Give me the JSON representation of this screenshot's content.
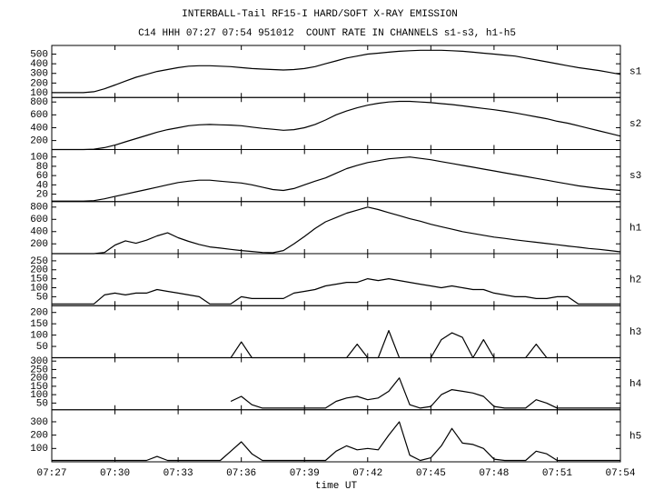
{
  "title": "INTERBALL-Tail RF15-I HARD/SOFT X-RAY EMISSION",
  "subtitle": "C14 HHH 07:27 07:54 951012  COUNT RATE IN CHANNELS s1-s3, h1-h5",
  "axis": {
    "xlabel": "time UT",
    "xlim": [
      447,
      474
    ],
    "xticks": [
      {
        "value": 447,
        "label": "07:27"
      },
      {
        "value": 450,
        "label": "07:30"
      },
      {
        "value": 453,
        "label": "07:33"
      },
      {
        "value": 456,
        "label": "07:36"
      },
      {
        "value": 459,
        "label": "07:39"
      },
      {
        "value": 462,
        "label": "07:42"
      },
      {
        "value": 465,
        "label": "07:45"
      },
      {
        "value": 468,
        "label": "07:48"
      },
      {
        "value": 471,
        "label": "07:51"
      },
      {
        "value": 474,
        "label": "07:54"
      }
    ],
    "x": [
      447,
      447.5,
      448,
      448.5,
      449,
      449.5,
      450,
      450.5,
      451,
      451.5,
      452,
      452.5,
      453,
      453.5,
      454,
      454.5,
      455,
      455.5,
      456,
      456.5,
      457,
      457.5,
      458,
      458.5,
      459,
      459.5,
      460,
      460.5,
      461,
      461.5,
      462,
      462.5,
      463,
      463.5,
      464,
      464.5,
      465,
      465.5,
      466,
      466.5,
      467,
      467.5,
      468,
      468.5,
      469,
      469.5,
      470,
      470.5,
      471,
      471.5,
      472,
      472.5,
      473,
      473.5,
      474
    ]
  },
  "chart_data": [
    {
      "type": "line",
      "label": "s1",
      "color": "#000000",
      "ylim": [
        50,
        590
      ],
      "yticks": [
        100,
        200,
        300,
        400,
        500
      ],
      "values": [
        100,
        100,
        100,
        100,
        110,
        140,
        180,
        220,
        260,
        290,
        320,
        340,
        360,
        375,
        380,
        380,
        375,
        370,
        360,
        350,
        345,
        340,
        335,
        340,
        350,
        370,
        400,
        430,
        460,
        480,
        500,
        510,
        520,
        530,
        535,
        540,
        540,
        540,
        535,
        530,
        520,
        510,
        500,
        490,
        480,
        460,
        440,
        420,
        400,
        380,
        360,
        345,
        330,
        310,
        290
      ]
    },
    {
      "type": "line",
      "label": "s2",
      "color": "#000000",
      "ylim": [
        60,
        870
      ],
      "yticks": [
        200,
        400,
        600,
        800
      ],
      "values": [
        60,
        60,
        60,
        60,
        65,
        90,
        130,
        180,
        230,
        280,
        330,
        370,
        400,
        430,
        445,
        450,
        445,
        440,
        430,
        410,
        390,
        375,
        360,
        370,
        400,
        450,
        520,
        600,
        660,
        710,
        750,
        780,
        800,
        810,
        810,
        800,
        790,
        775,
        760,
        740,
        720,
        700,
        680,
        655,
        630,
        600,
        570,
        540,
        500,
        470,
        430,
        390,
        350,
        310,
        270
      ]
    },
    {
      "type": "line",
      "label": "s3",
      "color": "#000000",
      "ylim": [
        4,
        116
      ],
      "yticks": [
        20,
        40,
        60,
        80,
        100
      ],
      "values": [
        5,
        5,
        5,
        5,
        6,
        10,
        15,
        20,
        25,
        30,
        35,
        40,
        45,
        48,
        50,
        50,
        48,
        46,
        44,
        40,
        35,
        30,
        28,
        32,
        40,
        48,
        55,
        65,
        75,
        82,
        88,
        92,
        96,
        98,
        100,
        97,
        94,
        90,
        86,
        82,
        78,
        74,
        70,
        66,
        62,
        58,
        54,
        50,
        46,
        42,
        38,
        35,
        32,
        30,
        28
      ]
    },
    {
      "type": "line",
      "label": "h1",
      "color": "#000000",
      "ylim": [
        40,
        890
      ],
      "yticks": [
        200,
        400,
        600,
        800
      ],
      "values": [
        40,
        40,
        40,
        40,
        40,
        60,
        180,
        250,
        210,
        260,
        330,
        380,
        300,
        240,
        190,
        150,
        130,
        110,
        90,
        75,
        60,
        55,
        90,
        200,
        320,
        450,
        560,
        630,
        700,
        750,
        800,
        760,
        710,
        660,
        610,
        570,
        520,
        480,
        440,
        400,
        370,
        340,
        310,
        290,
        265,
        245,
        225,
        205,
        185,
        165,
        145,
        125,
        110,
        90,
        70
      ]
    },
    {
      "type": "line",
      "label": "h2",
      "color": "#000000",
      "ylim": [
        0,
        290
      ],
      "yticks": [
        50,
        100,
        150,
        200,
        250
      ],
      "values": [
        10,
        10,
        10,
        10,
        10,
        60,
        70,
        60,
        70,
        70,
        90,
        80,
        70,
        60,
        50,
        10,
        10,
        10,
        50,
        40,
        40,
        40,
        40,
        70,
        80,
        90,
        110,
        120,
        130,
        130,
        150,
        140,
        150,
        140,
        130,
        120,
        110,
        100,
        110,
        100,
        90,
        90,
        70,
        60,
        50,
        50,
        40,
        40,
        50,
        50,
        10,
        10,
        10,
        10,
        10
      ]
    },
    {
      "type": "line",
      "label": "h3",
      "color": "#000000",
      "ylim": [
        0,
        230
      ],
      "yticks": [
        50,
        100,
        150,
        200
      ],
      "values": [
        0,
        0,
        0,
        0,
        0,
        0,
        0,
        0,
        0,
        0,
        0,
        0,
        0,
        0,
        0,
        0,
        0,
        0,
        70,
        0,
        0,
        0,
        0,
        0,
        0,
        0,
        0,
        0,
        0,
        60,
        0,
        0,
        120,
        0,
        0,
        0,
        0,
        80,
        110,
        90,
        0,
        80,
        0,
        0,
        0,
        0,
        60,
        0,
        0,
        0,
        0,
        0,
        0,
        0,
        0
      ]
    },
    {
      "type": "line",
      "label": "h4",
      "color": "#000000",
      "ylim": [
        10,
        320
      ],
      "yticks": [
        50,
        100,
        150,
        200,
        250,
        300
      ],
      "values": [
        null,
        null,
        null,
        null,
        null,
        null,
        null,
        null,
        null,
        null,
        null,
        null,
        null,
        null,
        null,
        null,
        null,
        60,
        90,
        40,
        20,
        20,
        20,
        20,
        20,
        20,
        20,
        60,
        80,
        90,
        70,
        80,
        120,
        200,
        40,
        20,
        30,
        100,
        130,
        120,
        110,
        90,
        30,
        20,
        20,
        20,
        70,
        50,
        20,
        20,
        20,
        20,
        20,
        20,
        20
      ]
    },
    {
      "type": "line",
      "label": "h5",
      "color": "#000000",
      "ylim": [
        0,
        390
      ],
      "yticks": [
        100,
        200,
        300
      ],
      "values": [
        10,
        10,
        10,
        10,
        10,
        10,
        10,
        10,
        10,
        10,
        40,
        10,
        10,
        10,
        10,
        10,
        10,
        80,
        150,
        60,
        10,
        10,
        10,
        10,
        10,
        10,
        10,
        80,
        120,
        90,
        100,
        90,
        200,
        300,
        50,
        10,
        30,
        120,
        250,
        140,
        130,
        100,
        20,
        10,
        10,
        10,
        80,
        60,
        10,
        10,
        10,
        10,
        10,
        10,
        10
      ]
    }
  ]
}
